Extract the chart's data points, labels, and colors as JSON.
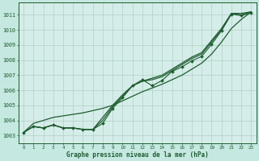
{
  "bg_color": "#c5e8e0",
  "plot_bg_color": "#d5ede8",
  "grid_color": "#b0d0c8",
  "line_color": "#1e5c30",
  "xlabel": "Graphe pression niveau de la mer (hPa)",
  "xlim": [
    -0.5,
    23.5
  ],
  "ylim": [
    1002.5,
    1011.8
  ],
  "yticks": [
    1003,
    1004,
    1005,
    1006,
    1007,
    1008,
    1009,
    1010,
    1011
  ],
  "xticks": [
    0,
    1,
    2,
    3,
    4,
    5,
    6,
    7,
    8,
    9,
    10,
    11,
    12,
    13,
    14,
    15,
    16,
    17,
    18,
    19,
    20,
    21,
    22,
    23
  ],
  "series_smooth1": [
    1003.2,
    1003.6,
    1003.5,
    1003.7,
    1003.5,
    1003.5,
    1003.4,
    1003.4,
    1004.0,
    1004.9,
    1005.6,
    1006.3,
    1006.6,
    1006.7,
    1006.9,
    1007.3,
    1007.7,
    1008.1,
    1008.4,
    1009.2,
    1010.0,
    1011.1,
    1011.0,
    1011.2
  ],
  "series_smooth2": [
    1003.2,
    1003.6,
    1003.5,
    1003.7,
    1003.5,
    1003.5,
    1003.4,
    1003.4,
    1004.2,
    1005.0,
    1005.7,
    1006.3,
    1006.6,
    1006.8,
    1007.0,
    1007.4,
    1007.8,
    1008.2,
    1008.5,
    1009.3,
    1010.1,
    1011.1,
    1011.1,
    1011.2
  ],
  "series_wavy": [
    1003.2,
    1003.6,
    1003.5,
    1003.7,
    1003.5,
    1003.5,
    1003.4,
    1003.4,
    1003.8,
    1004.8,
    1005.5,
    1006.3,
    1006.7,
    1006.3,
    1006.65,
    1007.25,
    1007.55,
    1007.95,
    1008.25,
    1009.05,
    1009.95,
    1011.05,
    1010.95,
    1011.15
  ],
  "series_ref": [
    1003.2,
    1003.8,
    1004.0,
    1004.2,
    1004.3,
    1004.4,
    1004.5,
    1004.65,
    1004.8,
    1005.0,
    1005.3,
    1005.6,
    1005.9,
    1006.15,
    1006.4,
    1006.7,
    1007.0,
    1007.4,
    1007.8,
    1008.4,
    1009.2,
    1010.1,
    1010.7,
    1011.2
  ]
}
